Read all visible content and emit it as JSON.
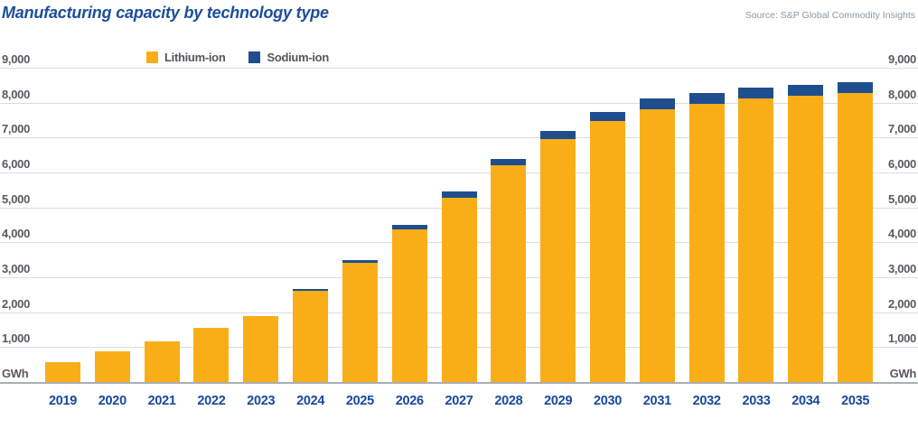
{
  "header": {
    "title": "Manufacturing capacity by technology type",
    "source": "Source: S&P Global Commodity Insights"
  },
  "legend": [
    {
      "label": "Lithium-ion",
      "color": "#f9ae18"
    },
    {
      "label": "Sodium-ion",
      "color": "#1f4e8e"
    }
  ],
  "axis": {
    "unit_label": "GWh",
    "y_ticks": [
      9000,
      8000,
      7000,
      6000,
      5000,
      4000,
      3000,
      2000,
      1000
    ],
    "y_tick_labels": [
      "9,000",
      "8,000",
      "7,000",
      "6,000",
      "5,000",
      "4,000",
      "3,000",
      "2,000",
      "1,000"
    ]
  },
  "chart_data": {
    "type": "bar",
    "stacked": true,
    "title": "Manufacturing capacity by technology type",
    "ylabel": "GWh",
    "ylim": [
      0,
      9000
    ],
    "grid": true,
    "legend_position": "top-left",
    "categories": [
      "2019",
      "2020",
      "2021",
      "2022",
      "2023",
      "2024",
      "2025",
      "2026",
      "2027",
      "2028",
      "2029",
      "2030",
      "2031",
      "2032",
      "2033",
      "2034",
      "2035"
    ],
    "series": [
      {
        "name": "Lithium-ion",
        "color": "#f9ae18",
        "values": [
          580,
          880,
          1160,
          1550,
          1890,
          2620,
          3420,
          4380,
          5270,
          6210,
          6950,
          7480,
          7800,
          7970,
          8130,
          8200,
          8270
        ]
      },
      {
        "name": "Sodium-ion",
        "color": "#1f4e8e",
        "values": [
          0,
          0,
          0,
          0,
          0,
          40,
          70,
          110,
          190,
          190,
          240,
          250,
          310,
          300,
          290,
          300,
          320
        ]
      }
    ]
  },
  "colors": {
    "title_blue": "#1b4e9b",
    "year_label_blue": "#17499c",
    "tick_grey": "#595a5e",
    "gridline_grey": "#dadddf",
    "axisline_grey": "#a9afb4",
    "source_grey": "#8d97a2"
  }
}
